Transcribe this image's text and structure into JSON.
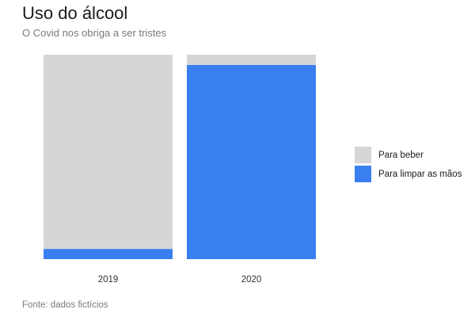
{
  "chart_data": {
    "type": "bar",
    "stacked": true,
    "normalized": true,
    "title": "Uso do álcool",
    "subtitle": "O Covid nos obriga a ser tristes",
    "caption": "Fonte: dados fictícios",
    "xlabel": "",
    "ylabel": "",
    "ylim": [
      0,
      1
    ],
    "grid": false,
    "legend_position": "right",
    "categories": [
      "2019",
      "2020"
    ],
    "series": [
      {
        "name": "Para limpar as mãos",
        "color": "#3a7ff0",
        "values": [
          0.05,
          0.95
        ]
      },
      {
        "name": "Para beber",
        "color": "#d6d6d6",
        "values": [
          0.95,
          0.05
        ]
      }
    ],
    "legend": [
      {
        "name": "Para beber",
        "color": "#d6d6d6"
      },
      {
        "name": "Para limpar as mãos",
        "color": "#3a7ff0"
      }
    ]
  }
}
